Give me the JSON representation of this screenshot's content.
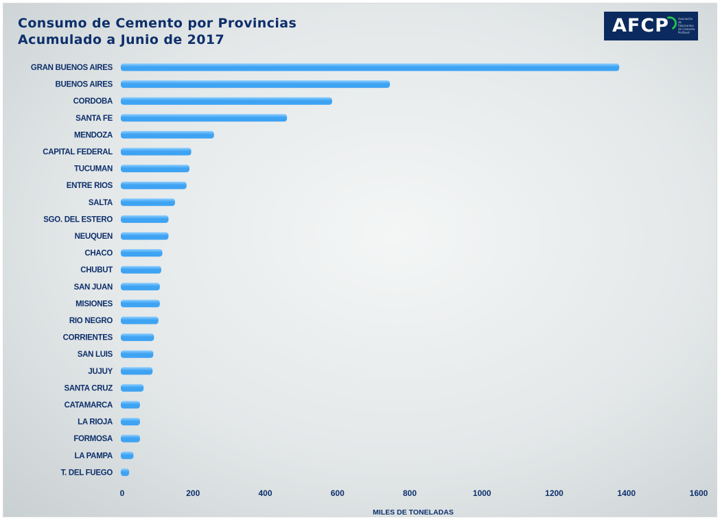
{
  "title": {
    "line1": "Consumo de Cemento por Provincias",
    "line2": "Acumulado a Junio de 2017"
  },
  "logo": {
    "mark": "AFCP",
    "text": "Asociación de Fabricantes de Cemento Portland"
  },
  "colors": {
    "bar": "#3fa3f3",
    "bar_highlight": "#8fd0ff",
    "text": "#0d2f6b",
    "logo_bg": "#0b2a5e",
    "logo_accent": "#22c24e"
  },
  "chart_data": {
    "type": "bar",
    "orientation": "horizontal",
    "title": "Consumo de Cemento por Provincias Acumulado a Junio de 2017",
    "xlabel": "MILES DE TONELADAS",
    "ylabel": "",
    "xlim": [
      0,
      1600
    ],
    "xticks": [
      0,
      200,
      400,
      600,
      800,
      1000,
      1200,
      1400,
      1600
    ],
    "grid": false,
    "legend": "none",
    "categories": [
      "GRAN BUENOS AIRES",
      "BUENOS AIRES",
      "CORDOBA",
      "SANTA FE",
      "MENDOZA",
      "CAPITAL FEDERAL",
      "TUCUMAN",
      "ENTRE RIOS",
      "SALTA",
      "SGO. DEL ESTERO",
      "NEUQUEN",
      "CHACO",
      "CHUBUT",
      "SAN JUAN",
      "MISIONES",
      "RIO NEGRO",
      "CORRIENTES",
      "SAN LUIS",
      "JUJUY",
      "SANTA CRUZ",
      "CATAMARCA",
      "LA RIOJA",
      "FORMOSA",
      "LA PAMPA",
      "T. DEL FUEGO"
    ],
    "values": [
      1380,
      745,
      585,
      460,
      258,
      195,
      190,
      182,
      150,
      132,
      132,
      115,
      112,
      108,
      108,
      104,
      92,
      90,
      88,
      63,
      53,
      53,
      53,
      35,
      23
    ]
  }
}
